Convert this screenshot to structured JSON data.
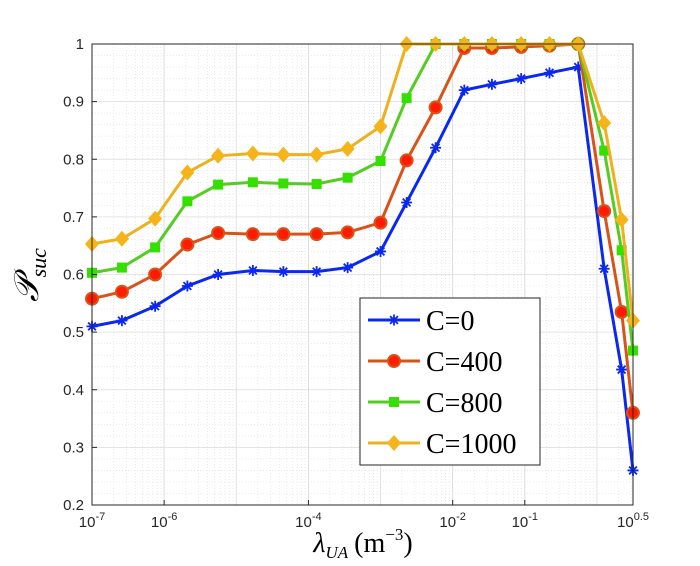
{
  "chart_data": {
    "type": "line",
    "xlabel": {
      "main": "λ",
      "sub": "UA",
      "unit": "(m",
      "unit_sup": "−3",
      "close": ")"
    },
    "ylabel": {
      "main": "𝒫",
      "sub": "suc"
    },
    "xscale": "log",
    "x": [
      1e-07,
      2.6e-07,
      7.5e-07,
      2.1e-06,
      5.6e-06,
      1.7e-05,
      4.5e-05,
      0.00013,
      0.00035,
      0.001,
      0.0023,
      0.0058,
      0.0145,
      0.035,
      0.089,
      0.22,
      0.55,
      1.26,
      2.2,
      3.16
    ],
    "xlim": [
      1e-07,
      3.1623
    ],
    "xticks": [
      {
        "value": 1e-07,
        "label": "10",
        "exponent": "-7"
      },
      {
        "value": 1e-06,
        "label": "10",
        "exponent": "-6"
      },
      {
        "value": 0.0001,
        "label": "10",
        "exponent": "-4"
      },
      {
        "value": 0.01,
        "label": "10",
        "exponent": "-2"
      },
      {
        "value": 0.1,
        "label": "10",
        "exponent": "-1"
      },
      {
        "value": 3.1623,
        "label": "10",
        "exponent": "0.5"
      }
    ],
    "ylim": [
      0.2,
      1
    ],
    "yticks": [
      0.2,
      0.3,
      0.4,
      0.5,
      0.6,
      0.7,
      0.8,
      0.9,
      1
    ],
    "grid": true,
    "minor_grid": true,
    "legend": "lower right",
    "series": [
      {
        "name": "C=0",
        "color": "#0a28f0",
        "marker": "asterisk",
        "marker_fill": "#0a28f0",
        "values": [
          0.51,
          0.52,
          0.545,
          0.58,
          0.6,
          0.607,
          0.605,
          0.605,
          0.612,
          0.64,
          0.725,
          0.82,
          0.92,
          0.93,
          0.94,
          0.95,
          0.96,
          0.61,
          0.435,
          0.26
        ]
      },
      {
        "name": "C=400",
        "color": "#d95319",
        "marker": "circle",
        "marker_fill": "#ff1a00",
        "values": [
          0.558,
          0.57,
          0.6,
          0.652,
          0.672,
          0.67,
          0.67,
          0.67,
          0.673,
          0.69,
          0.798,
          0.89,
          0.993,
          0.993,
          0.995,
          0.997,
          1,
          0.71,
          0.535,
          0.36
        ]
      },
      {
        "name": "C=800",
        "color": "#55cc22",
        "marker": "square",
        "marker_fill": "#33e000",
        "values": [
          0.603,
          0.612,
          0.647,
          0.727,
          0.756,
          0.76,
          0.758,
          0.757,
          0.768,
          0.797,
          0.906,
          1,
          1,
          1,
          1,
          1,
          1,
          0.815,
          0.642,
          0.468
        ]
      },
      {
        "name": "C=1000",
        "color": "#edb120",
        "marker": "diamond",
        "marker_fill": "#f4b41a",
        "values": [
          0.653,
          0.662,
          0.697,
          0.777,
          0.806,
          0.81,
          0.808,
          0.808,
          0.818,
          0.857,
          1,
          1,
          1,
          1,
          1,
          1,
          1,
          0.863,
          0.695,
          0.52
        ]
      }
    ]
  }
}
